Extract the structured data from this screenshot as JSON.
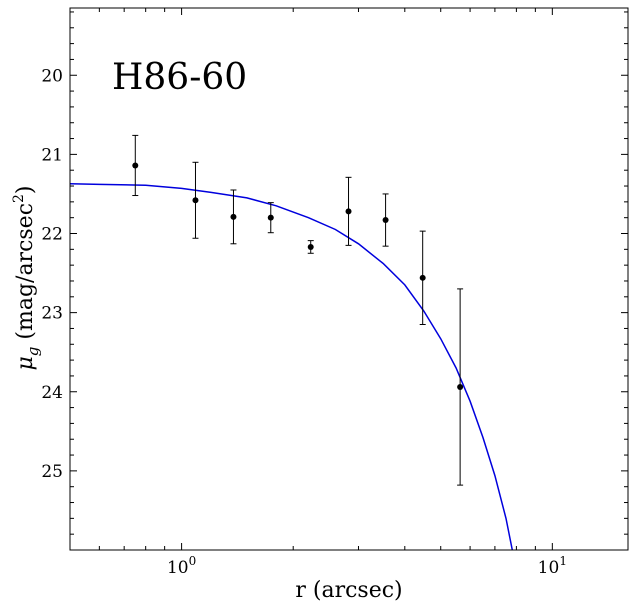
{
  "chart_data": {
    "type": "scatter",
    "annotation": "H86-60",
    "xlabel": "r (arcsec)",
    "ylabel_main": "μ",
    "ylabel_sub": "g",
    "ylabel_rest": " (mag/arcsec",
    "ylabel_sup": "2",
    "ylabel_end": ")",
    "x_scale": "log",
    "xlim": [
      0.5,
      16
    ],
    "ylim": [
      26.0,
      19.15
    ],
    "y_inverted": true,
    "grid": false,
    "x_ticks": [
      {
        "value": 1,
        "base": "10",
        "exp": "0"
      },
      {
        "value": 10,
        "base": "10",
        "exp": "1"
      }
    ],
    "y_ticks": [
      20,
      21,
      22,
      23,
      24,
      25
    ],
    "points": [
      {
        "x": 0.75,
        "y": 21.14,
        "err_low": 0.38,
        "err_high": 0.38
      },
      {
        "x": 1.09,
        "y": 21.58,
        "err_low": 0.48,
        "err_high": 0.48
      },
      {
        "x": 1.38,
        "y": 21.79,
        "err_low": 0.34,
        "err_high": 0.34
      },
      {
        "x": 1.74,
        "y": 21.8,
        "err_low": 0.19,
        "err_high": 0.19
      },
      {
        "x": 2.23,
        "y": 22.17,
        "err_low": 0.08,
        "err_high": 0.08
      },
      {
        "x": 2.82,
        "y": 21.72,
        "err_low": 0.43,
        "err_high": 0.43
      },
      {
        "x": 3.55,
        "y": 21.83,
        "err_low": 0.33,
        "err_high": 0.33
      },
      {
        "x": 4.47,
        "y": 22.56,
        "err_low": 0.59,
        "err_high": 0.59
      },
      {
        "x": 5.64,
        "y": 23.94,
        "err_low": 1.24,
        "err_high": 1.24
      }
    ],
    "model_curve": {
      "color": "#0000dd",
      "points": [
        [
          0.5,
          21.37
        ],
        [
          0.6,
          21.38
        ],
        [
          0.8,
          21.39
        ],
        [
          1.0,
          21.43
        ],
        [
          1.2,
          21.48
        ],
        [
          1.5,
          21.55
        ],
        [
          1.8,
          21.65
        ],
        [
          2.2,
          21.8
        ],
        [
          2.6,
          21.95
        ],
        [
          3.0,
          22.13
        ],
        [
          3.5,
          22.38
        ],
        [
          4.0,
          22.65
        ],
        [
          4.5,
          22.98
        ],
        [
          5.0,
          23.33
        ],
        [
          5.5,
          23.7
        ],
        [
          6.0,
          24.12
        ],
        [
          6.5,
          24.58
        ],
        [
          7.0,
          25.06
        ],
        [
          7.5,
          25.6
        ],
        [
          7.8,
          26.0
        ]
      ]
    },
    "marker_color": "#000000"
  }
}
